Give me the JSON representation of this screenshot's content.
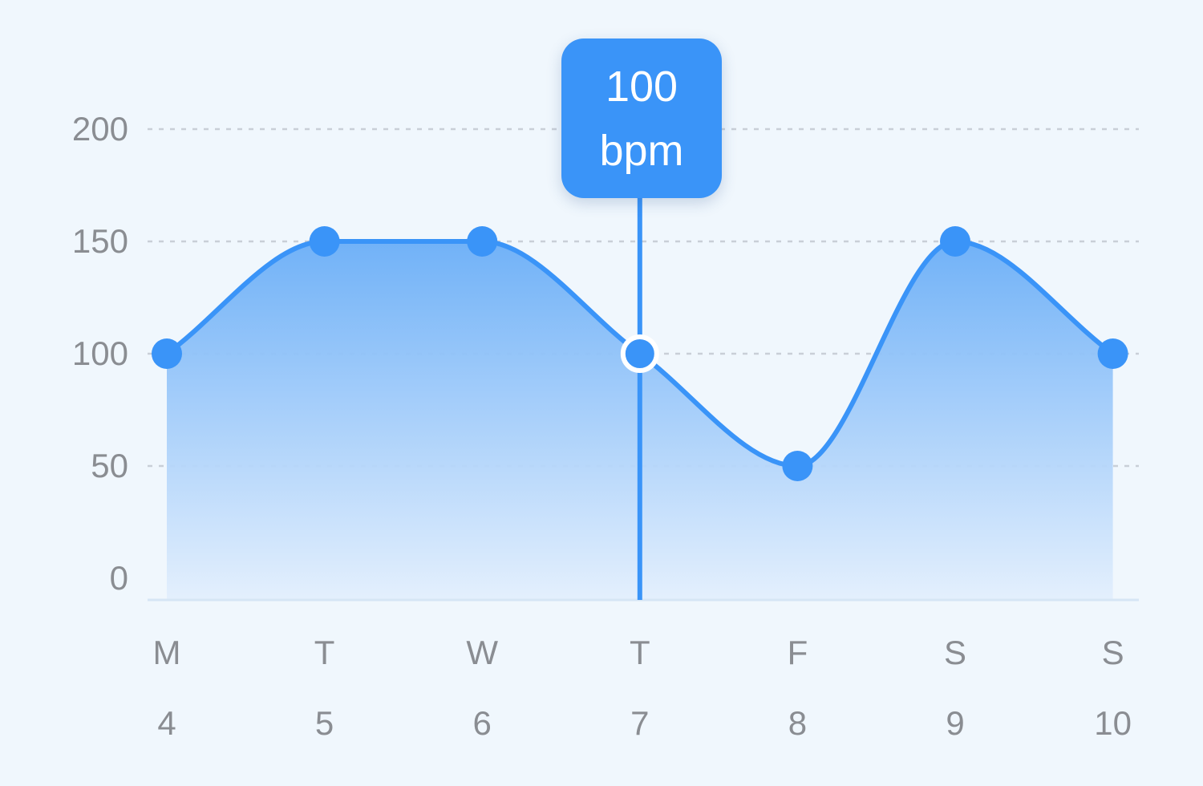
{
  "chart_data": {
    "type": "area",
    "x_labels_day": [
      "M",
      "T",
      "W",
      "T",
      "F",
      "S",
      "S"
    ],
    "x_labels_date": [
      "4",
      "5",
      "6",
      "7",
      "8",
      "9",
      "10"
    ],
    "values": [
      100,
      150,
      150,
      100,
      50,
      150,
      100
    ],
    "y_ticks": [
      0,
      50,
      100,
      150,
      200
    ],
    "ylim": [
      0,
      200
    ],
    "grid": true,
    "selected_index": 3,
    "tooltip": {
      "value": "100",
      "unit": "bpm"
    },
    "colors": {
      "line": "#3a94f8",
      "area_top": "#6aaef7",
      "area_bottom": "#e3effd",
      "grid": "#c9cfd7",
      "axis": "#d6e6f5",
      "tick_text": "#8a8d92",
      "background": "#f0f7fd"
    }
  }
}
